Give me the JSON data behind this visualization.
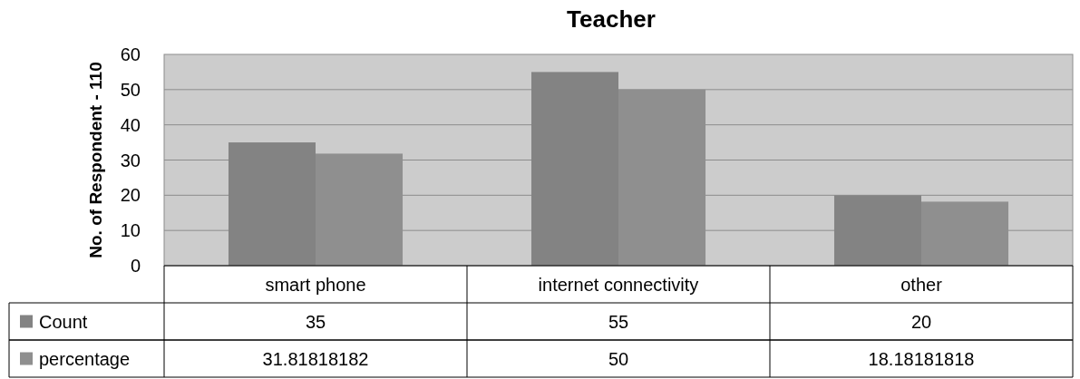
{
  "chart_data": {
    "type": "bar",
    "title": "Teacher",
    "ylabel": "No. of Respondent - 110",
    "categories": [
      "smart phone",
      "internet connectivity",
      "other"
    ],
    "series": [
      {
        "name": "Count",
        "color": "#838383",
        "values": [
          35,
          55,
          20
        ]
      },
      {
        "name": "percentage",
        "color": "#8f8f8f",
        "values": [
          31.81818182,
          50,
          18.18181818
        ]
      }
    ],
    "ylim": [
      0,
      60
    ],
    "yticks": [
      0,
      10,
      20,
      30,
      40,
      50,
      60
    ],
    "grid": "y",
    "legend": "bottom",
    "data_labels": true
  }
}
